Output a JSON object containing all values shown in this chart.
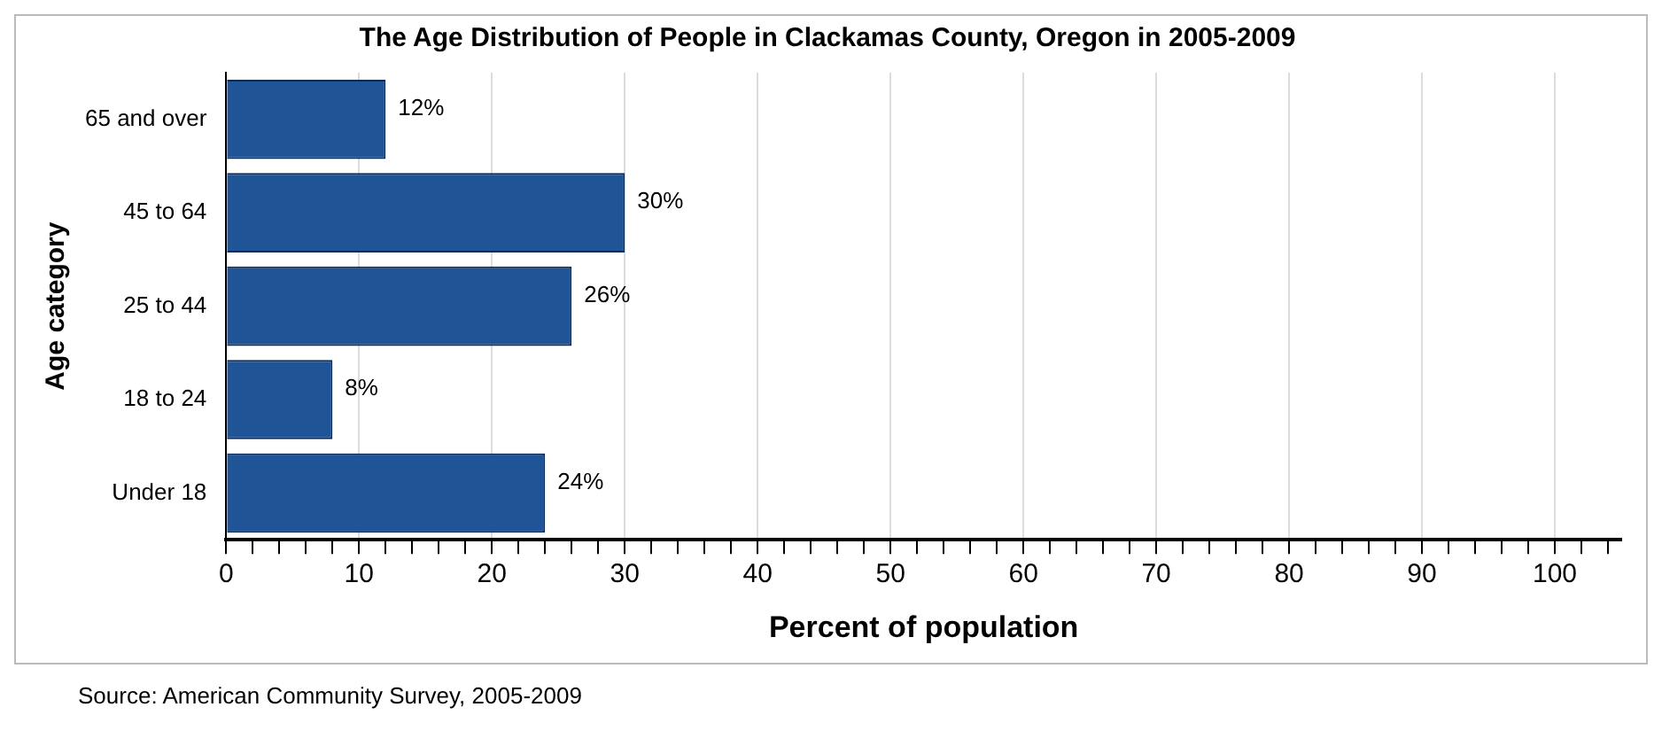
{
  "chart_data": {
    "type": "bar",
    "orientation": "horizontal",
    "title": "The Age Distribution of People in Clackamas County, Oregon in 2005-2009",
    "xlabel": "Percent of population",
    "ylabel": "Age category",
    "categories": [
      "65 and over",
      "45 to 64",
      "25 to 44",
      "18 to 24",
      "Under 18"
    ],
    "values": [
      12,
      30,
      26,
      8,
      24
    ],
    "value_labels": [
      "12%",
      "30%",
      "26%",
      "8%",
      "24%"
    ],
    "color": "#1f5596",
    "xlim": [
      0,
      105
    ],
    "xticks": [
      0,
      {
        "value": 2,
        "label": null
      },
      {
        "value": 4,
        "label": null
      },
      {
        "value": 6,
        "label": null
      },
      {
        "value": 8,
        "label": null
      },
      10,
      {
        "value": 12,
        "label": null
      },
      {
        "value": 14,
        "label": null
      },
      {
        "value": 16,
        "label": null
      },
      {
        "value": 18,
        "label": null
      },
      20,
      {
        "value": 22,
        "label": null
      },
      {
        "value": 24,
        "label": null
      },
      {
        "value": 26,
        "label": null
      },
      {
        "value": 28,
        "label": null
      },
      30,
      {
        "value": 32,
        "label": null
      },
      {
        "value": 34,
        "label": null
      },
      {
        "value": 36,
        "label": null
      },
      {
        "value": 38,
        "label": null
      },
      40,
      {
        "value": 42,
        "label": null
      },
      {
        "value": 44,
        "label": null
      },
      {
        "value": 46,
        "label": null
      },
      {
        "value": 48,
        "label": null
      },
      50,
      {
        "value": 52,
        "label": null
      },
      {
        "value": 54,
        "label": null
      },
      {
        "value": 56,
        "label": null
      },
      {
        "value": 58,
        "label": null
      },
      60,
      {
        "value": 62,
        "label": null
      },
      {
        "value": 64,
        "label": null
      },
      {
        "value": 66,
        "label": null
      },
      {
        "value": 68,
        "label": null
      },
      70,
      {
        "value": 72,
        "label": null
      },
      {
        "value": 74,
        "label": null
      },
      {
        "value": 76,
        "label": null
      },
      {
        "value": 78,
        "label": null
      },
      80,
      {
        "value": 82,
        "label": null
      },
      {
        "value": 84,
        "label": null
      },
      {
        "value": 86,
        "label": null
      },
      {
        "value": 88,
        "label": null
      },
      90,
      {
        "value": 92,
        "label": null
      },
      {
        "value": 94,
        "label": null
      },
      {
        "value": 96,
        "label": null
      },
      {
        "value": 98,
        "label": null
      },
      100,
      {
        "value": 102,
        "label": null
      },
      {
        "value": 104,
        "label": null
      }
    ],
    "grid": "x",
    "legend": false,
    "annotations": [
      "Source: American Community Survey, 2005-2009"
    ]
  }
}
